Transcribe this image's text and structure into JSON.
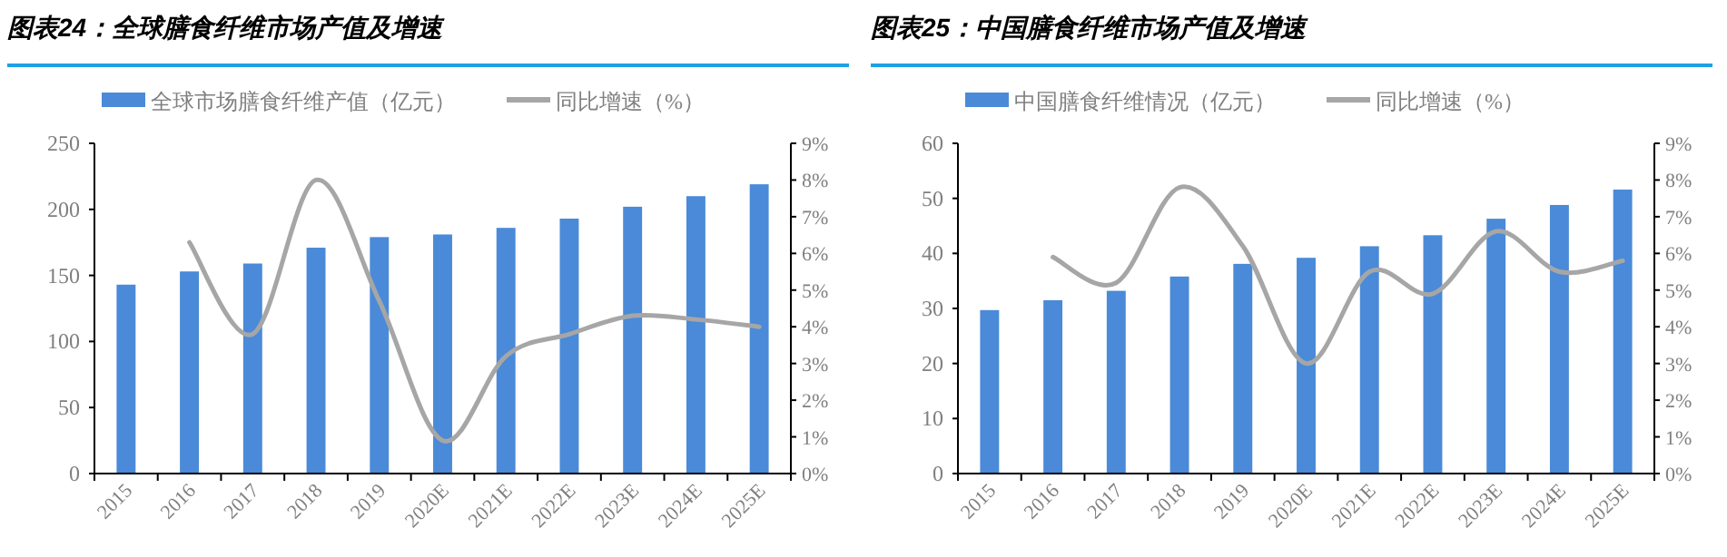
{
  "chart_data": [
    {
      "type": "bar",
      "title": "图表24：全球膳食纤维市场产值及增速",
      "categories": [
        "2015",
        "2016",
        "2017",
        "2018",
        "2019",
        "2020E",
        "2021E",
        "2022E",
        "2023E",
        "2024E",
        "2025E"
      ],
      "series": [
        {
          "name": "全球市场膳食纤维产值（亿元）",
          "color": "#4a8ad8",
          "values": [
            143,
            153,
            159,
            171,
            179,
            181,
            186,
            193,
            202,
            210,
            219
          ]
        },
        {
          "name": "同比增速（%）",
          "type": "line",
          "axis": "y2",
          "color": "#a6a6a6",
          "values": [
            null,
            6.3,
            3.8,
            8.0,
            4.7,
            0.9,
            3.2,
            3.8,
            4.3,
            4.2,
            4.0
          ]
        }
      ],
      "ylim": [
        0,
        250
      ],
      "yticks": [
        0,
        50,
        100,
        150,
        200,
        250
      ],
      "y2lim": [
        0,
        9
      ],
      "y2ticks": [
        {
          "value": 0,
          "label": "0%"
        },
        {
          "value": 1,
          "label": "1%"
        },
        {
          "value": 2,
          "label": "2%"
        },
        {
          "value": 3,
          "label": "3%"
        },
        {
          "value": 4,
          "label": "4%"
        },
        {
          "value": 5,
          "label": "5%"
        },
        {
          "value": 6,
          "label": "6%"
        },
        {
          "value": 7,
          "label": "7%"
        },
        {
          "value": 8,
          "label": "8%"
        },
        {
          "value": 9,
          "label": "9%"
        }
      ],
      "legend": "top",
      "grid": false
    },
    {
      "type": "bar",
      "title": "图表25：中国膳食纤维市场产值及增速",
      "categories": [
        "2015",
        "2016",
        "2017",
        "2018",
        "2019",
        "2020E",
        "2021E",
        "2022E",
        "2023E",
        "2024E",
        "2025E"
      ],
      "series": [
        {
          "name": "中国膳食纤维情况（亿元）",
          "color": "#4a8ad8",
          "values": [
            29.7,
            31.5,
            33.2,
            35.8,
            38.1,
            39.2,
            41.3,
            43.3,
            46.3,
            48.8,
            51.6
          ]
        },
        {
          "name": "同比增速（%）",
          "type": "line",
          "axis": "y2",
          "color": "#a6a6a6",
          "values": [
            null,
            5.9,
            5.2,
            7.8,
            6.2,
            3.0,
            5.5,
            4.9,
            6.6,
            5.5,
            5.8
          ]
        }
      ],
      "ylim": [
        0,
        60
      ],
      "yticks": [
        0,
        10,
        20,
        30,
        40,
        50,
        60
      ],
      "y2lim": [
        0,
        9
      ],
      "y2ticks": [
        {
          "value": 0,
          "label": "0%"
        },
        {
          "value": 1,
          "label": "1%"
        },
        {
          "value": 2,
          "label": "2%"
        },
        {
          "value": 3,
          "label": "3%"
        },
        {
          "value": 4,
          "label": "4%"
        },
        {
          "value": 5,
          "label": "5%"
        },
        {
          "value": 6,
          "label": "6%"
        },
        {
          "value": 7,
          "label": "7%"
        },
        {
          "value": 8,
          "label": "8%"
        },
        {
          "value": 9,
          "label": "9%"
        }
      ],
      "legend": "top",
      "grid": false
    }
  ]
}
